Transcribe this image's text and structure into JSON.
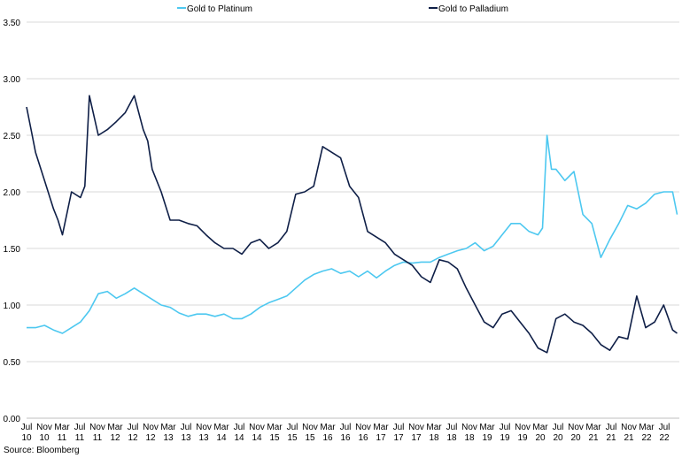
{
  "chart_data": {
    "type": "line",
    "title": "",
    "xlabel": "",
    "ylabel": "",
    "ylim": [
      0,
      3.5
    ],
    "yticks": [
      "0.00",
      "0.50",
      "1.00",
      "1.50",
      "2.00",
      "2.50",
      "3.00",
      "3.50"
    ],
    "grid": true,
    "legend_position": "top",
    "x_tick_labels": [
      [
        "Jul",
        "10"
      ],
      [
        "Nov",
        "10"
      ],
      [
        "Mar",
        "11"
      ],
      [
        "Jul",
        "11"
      ],
      [
        "Nov",
        "11"
      ],
      [
        "Mar",
        "12"
      ],
      [
        "Jul",
        "12"
      ],
      [
        "Nov",
        "12"
      ],
      [
        "Mar",
        "13"
      ],
      [
        "Jul",
        "13"
      ],
      [
        "Nov",
        "13"
      ],
      [
        "Mar",
        "14"
      ],
      [
        "Jul",
        "14"
      ],
      [
        "Nov",
        "14"
      ],
      [
        "Mar",
        "15"
      ],
      [
        "Jul",
        "15"
      ],
      [
        "Nov",
        "15"
      ],
      [
        "Mar",
        "16"
      ],
      [
        "Jul",
        "16"
      ],
      [
        "Nov",
        "16"
      ],
      [
        "Mar",
        "17"
      ],
      [
        "Jul",
        "17"
      ],
      [
        "Nov",
        "17"
      ],
      [
        "Mar",
        "18"
      ],
      [
        "Jul",
        "18"
      ],
      [
        "Nov",
        "18"
      ],
      [
        "Mar",
        "19"
      ],
      [
        "Jul",
        "19"
      ],
      [
        "Nov",
        "19"
      ],
      [
        "Mar",
        "20"
      ],
      [
        "Jul",
        "20"
      ],
      [
        "Nov",
        "20"
      ],
      [
        "Mar",
        "21"
      ],
      [
        "Jul",
        "21"
      ],
      [
        "Nov",
        "21"
      ],
      [
        "Mar",
        "22"
      ],
      [
        "Jul",
        "22"
      ]
    ],
    "series": [
      {
        "name": "Gold to Platinum",
        "color": "#4dc8f0",
        "x": [
          "2010-07",
          "2010-09",
          "2010-11",
          "2011-01",
          "2011-03",
          "2011-05",
          "2011-07",
          "2011-09",
          "2011-11",
          "2012-01",
          "2012-03",
          "2012-05",
          "2012-07",
          "2012-09",
          "2012-11",
          "2013-01",
          "2013-03",
          "2013-05",
          "2013-07",
          "2013-09",
          "2013-11",
          "2014-01",
          "2014-03",
          "2014-05",
          "2014-07",
          "2014-09",
          "2014-11",
          "2015-01",
          "2015-03",
          "2015-05",
          "2015-07",
          "2015-09",
          "2015-11",
          "2016-01",
          "2016-03",
          "2016-05",
          "2016-07",
          "2016-09",
          "2016-11",
          "2017-01",
          "2017-03",
          "2017-05",
          "2017-07",
          "2017-09",
          "2017-11",
          "2018-01",
          "2018-03",
          "2018-05",
          "2018-07",
          "2018-09",
          "2018-11",
          "2019-01",
          "2019-03",
          "2019-05",
          "2019-07",
          "2019-09",
          "2019-11",
          "2020-01",
          "2020-02",
          "2020-03",
          "2020-04",
          "2020-05",
          "2020-07",
          "2020-09",
          "2020-11",
          "2021-01",
          "2021-03",
          "2021-05",
          "2021-07",
          "2021-09",
          "2021-11",
          "2022-01",
          "2022-03",
          "2022-05",
          "2022-07",
          "2022-08"
        ],
        "values": [
          0.8,
          0.8,
          0.82,
          0.78,
          0.75,
          0.8,
          0.85,
          0.95,
          1.1,
          1.12,
          1.06,
          1.1,
          1.15,
          1.1,
          1.05,
          1.0,
          0.98,
          0.93,
          0.9,
          0.92,
          0.92,
          0.9,
          0.92,
          0.88,
          0.88,
          0.92,
          0.98,
          1.02,
          1.05,
          1.08,
          1.15,
          1.22,
          1.27,
          1.3,
          1.32,
          1.28,
          1.3,
          1.25,
          1.3,
          1.24,
          1.3,
          1.35,
          1.38,
          1.37,
          1.38,
          1.38,
          1.42,
          1.45,
          1.48,
          1.5,
          1.55,
          1.48,
          1.52,
          1.62,
          1.72,
          1.72,
          1.65,
          1.62,
          1.68,
          2.5,
          2.2,
          2.2,
          2.1,
          2.18,
          1.8,
          1.72,
          1.42,
          1.58,
          1.72,
          1.88,
          1.85,
          1.9,
          1.98,
          2.0,
          2.0,
          1.8
        ]
      },
      {
        "name": "Gold to Palladium",
        "color": "#0f1f47",
        "x": [
          "2010-07",
          "2010-08",
          "2010-09",
          "2010-11",
          "2011-01",
          "2011-02",
          "2011-03",
          "2011-05",
          "2011-07",
          "2011-08",
          "2011-09",
          "2011-11",
          "2012-01",
          "2012-03",
          "2012-05",
          "2012-07",
          "2012-09",
          "2012-10",
          "2012-11",
          "2013-01",
          "2013-03",
          "2013-05",
          "2013-07",
          "2013-09",
          "2013-11",
          "2014-01",
          "2014-03",
          "2014-05",
          "2014-07",
          "2014-09",
          "2014-11",
          "2015-01",
          "2015-03",
          "2015-05",
          "2015-07",
          "2015-09",
          "2015-11",
          "2016-01",
          "2016-03",
          "2016-05",
          "2016-07",
          "2016-09",
          "2016-11",
          "2017-01",
          "2017-03",
          "2017-05",
          "2017-07",
          "2017-09",
          "2017-11",
          "2018-01",
          "2018-03",
          "2018-05",
          "2018-07",
          "2018-09",
          "2018-11",
          "2019-01",
          "2019-03",
          "2019-05",
          "2019-07",
          "2019-09",
          "2019-11",
          "2020-01",
          "2020-03",
          "2020-05",
          "2020-07",
          "2020-09",
          "2020-11",
          "2021-01",
          "2021-03",
          "2021-05",
          "2021-07",
          "2021-09",
          "2021-11",
          "2022-01",
          "2022-03",
          "2022-05",
          "2022-07",
          "2022-08"
        ],
        "values": [
          2.75,
          2.55,
          2.35,
          2.1,
          1.85,
          1.75,
          1.62,
          2.0,
          1.95,
          2.05,
          2.85,
          2.5,
          2.55,
          2.62,
          2.7,
          2.85,
          2.55,
          2.45,
          2.2,
          2.0,
          1.75,
          1.75,
          1.72,
          1.7,
          1.62,
          1.55,
          1.5,
          1.5,
          1.45,
          1.55,
          1.58,
          1.5,
          1.55,
          1.65,
          1.98,
          2.0,
          2.05,
          2.4,
          2.35,
          2.3,
          2.05,
          1.95,
          1.65,
          1.6,
          1.55,
          1.45,
          1.4,
          1.35,
          1.25,
          1.2,
          1.4,
          1.38,
          1.32,
          1.15,
          1.0,
          0.85,
          0.8,
          0.92,
          0.95,
          0.85,
          0.75,
          0.62,
          0.58,
          0.88,
          0.92,
          0.85,
          0.82,
          0.75,
          0.65,
          0.6,
          0.72,
          0.7,
          1.08,
          0.8,
          0.85,
          1.0,
          0.78,
          0.75
        ]
      }
    ]
  },
  "legend": {
    "items": [
      "Gold to Platinum",
      "Gold to Palladium"
    ]
  },
  "source": "Source: Bloomberg"
}
